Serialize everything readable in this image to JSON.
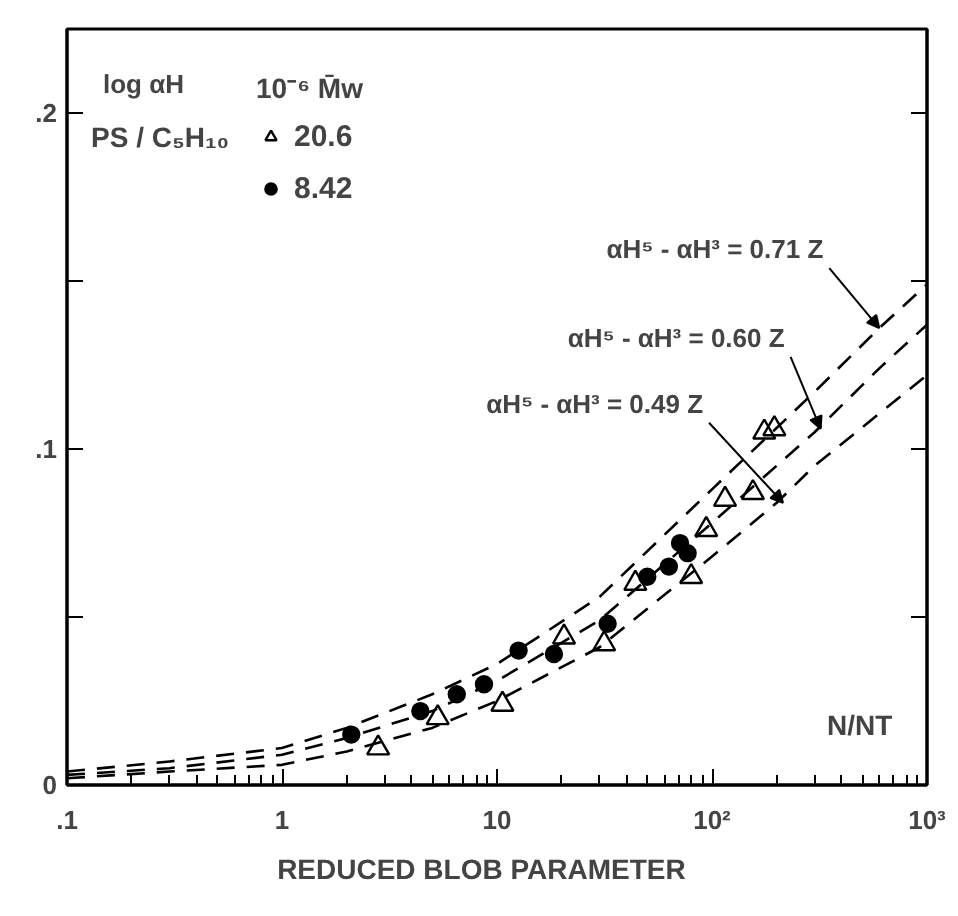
{
  "chart_data": {
    "type": "scatter",
    "xlabel": "REDUCED   BLOB   PARAMETER",
    "ylabel": "log αH",
    "legend_title": "10⁻⁶ M̄w",
    "legend": "top left",
    "grid": false,
    "log": "x",
    "xlim": [
      0.1,
      1000
    ],
    "ylim": [
      0,
      0.225
    ],
    "xticks": [
      {
        "value": 0.1,
        "label": ".1"
      },
      1,
      10,
      {
        "value": 100,
        "label": "10²"
      },
      {
        "value": 1000,
        "label": "10³"
      }
    ],
    "yticks": [
      0,
      {
        "value": 0.05,
        "label": null
      },
      {
        "value": 0.1,
        "label": ".1"
      },
      {
        "value": 0.15,
        "label": null
      },
      {
        "value": 0.2,
        "label": ".2"
      }
    ],
    "series": [
      {
        "name": "20.6",
        "marker": "triangle",
        "color": "#000000",
        "x": [
          2.8,
          5.3,
          10.6,
          20.5,
          31.5,
          44,
          80,
          94,
          115,
          155,
          175,
          195
        ],
        "values": [
          0.011,
          0.02,
          0.024,
          0.044,
          0.042,
          0.06,
          0.062,
          0.076,
          0.085,
          0.087,
          0.105,
          0.106
        ]
      },
      {
        "name": "8.42",
        "marker": "circle",
        "color": "#000000",
        "x": [
          2.1,
          4.4,
          6.5,
          8.7,
          12.6,
          18.4,
          32.7,
          50,
          63,
          71,
          77
        ],
        "values": [
          0.015,
          0.022,
          0.027,
          0.03,
          0.04,
          0.039,
          0.048,
          0.062,
          0.065,
          0.072,
          0.069
        ]
      },
      {
        "type": "line",
        "line_style": "dashed",
        "color": "#000000",
        "x": [
          0.1,
          0.3,
          1,
          2,
          5,
          10,
          30,
          100,
          300,
          600,
          1000
        ],
        "values": [
          0.004,
          0.007,
          0.011,
          0.017,
          0.027,
          0.036,
          0.056,
          0.088,
          0.117,
          0.136,
          0.149
        ]
      },
      {
        "type": "line",
        "line_style": "dashed",
        "color": "#000000",
        "x": [
          0.1,
          0.3,
          1,
          2,
          5,
          10,
          30,
          100,
          300,
          600,
          1000
        ],
        "values": [
          0.003,
          0.005,
          0.009,
          0.014,
          0.022,
          0.031,
          0.049,
          0.078,
          0.105,
          0.124,
          0.137
        ]
      },
      {
        "type": "line",
        "line_style": "dashed",
        "color": "#000000",
        "x": [
          0.1,
          0.3,
          1,
          2,
          5,
          10,
          30,
          100,
          200,
          300,
          1000
        ],
        "values": [
          0.002,
          0.004,
          0.006,
          0.01,
          0.017,
          0.025,
          0.041,
          0.068,
          0.084,
          0.095,
          0.122
        ]
      }
    ],
    "annotations": [
      {
        "text": "αH⁵ - αH³ = 0.71 Z",
        "x": 600,
        "y": 0.136
      },
      {
        "text": "αH⁵ - αH³ = 0.60 Z",
        "x": 320,
        "y": 0.106
      },
      {
        "text": "αH⁵ - αH³ = 0.49 Z",
        "x": 214,
        "y": 0.084
      },
      "PS / C₅H₁₀",
      "N/NT"
    ]
  }
}
